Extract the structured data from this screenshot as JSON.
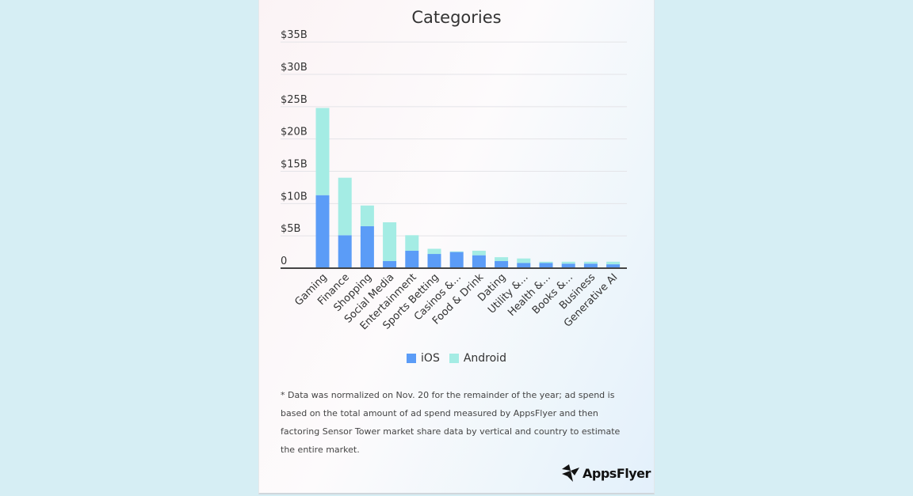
{
  "chart_data": {
    "type": "bar",
    "stacked": true,
    "title": "Categories",
    "categories": [
      "Gaming",
      "Finance",
      "Shopping",
      "Social Media",
      "Entertainment",
      "Sports Betting",
      "Casinos &...",
      "Food & Drink",
      "Dating",
      "Utility &...",
      "Health &...",
      "Books &...",
      "Business",
      "Generative AI"
    ],
    "series": [
      {
        "name": "iOS",
        "color": "#5b9cf7",
        "values": [
          11.3,
          5.1,
          6.5,
          1.1,
          2.7,
          2.2,
          2.5,
          2.0,
          1.1,
          0.8,
          0.8,
          0.7,
          0.7,
          0.6
        ]
      },
      {
        "name": "Android",
        "color": "#a4ece4",
        "values": [
          13.5,
          8.9,
          3.2,
          6.0,
          2.4,
          0.8,
          0.1,
          0.7,
          0.6,
          0.7,
          0.2,
          0.3,
          0.3,
          0.4
        ]
      }
    ],
    "yticks": [
      "0",
      "$5B",
      "$10B",
      "$15B",
      "$20B",
      "$25B",
      "$30B",
      "$35B"
    ],
    "ylim": [
      0,
      36
    ],
    "grid": true,
    "legend": "bottom"
  },
  "footnote": "* Data was normalized on Nov. 20 for the remainder of the year; ad spend is based on the total amount of ad spend measured by AppsFlyer and then factoring Sensor Tower market share data by vertical and country to estimate the entire market.",
  "logo": {
    "text": "AppsFlyer"
  }
}
